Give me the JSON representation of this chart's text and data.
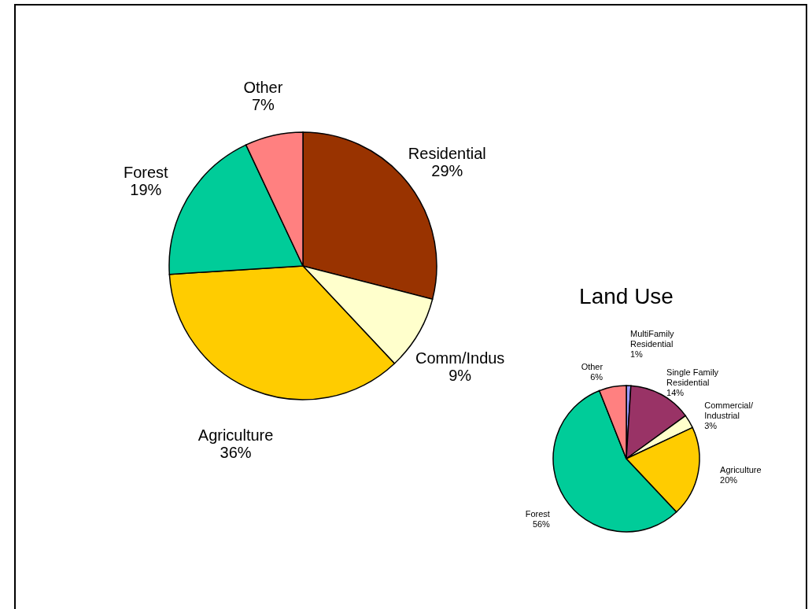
{
  "chart_data": [
    {
      "type": "pie",
      "categories": [
        "Residential",
        "Comm/Indus",
        "Agriculture",
        "Forest",
        "Other"
      ],
      "values": [
        29,
        9,
        36,
        19,
        7
      ],
      "value_labels": [
        "29%",
        "9%",
        "36%",
        "19%",
        "7%"
      ],
      "colors": [
        "#993300",
        "#ffffcc",
        "#ffcc00",
        "#00cc99",
        "#ff8080"
      ]
    },
    {
      "type": "pie",
      "title": "Land Use",
      "categories": [
        "MultiFamily\nResidential",
        "Single Family\nResidential",
        "Commercial/\nIndustrial",
        "Agriculture",
        "Forest",
        "Other"
      ],
      "values": [
        1,
        14,
        3,
        20,
        56,
        6
      ],
      "value_labels": [
        "1%",
        "14%",
        "3%",
        "20%",
        "56%",
        "6%"
      ],
      "colors": [
        "#9999ff",
        "#993366",
        "#ffffcc",
        "#ffcc00",
        "#00cc99",
        "#ff8080"
      ]
    }
  ]
}
